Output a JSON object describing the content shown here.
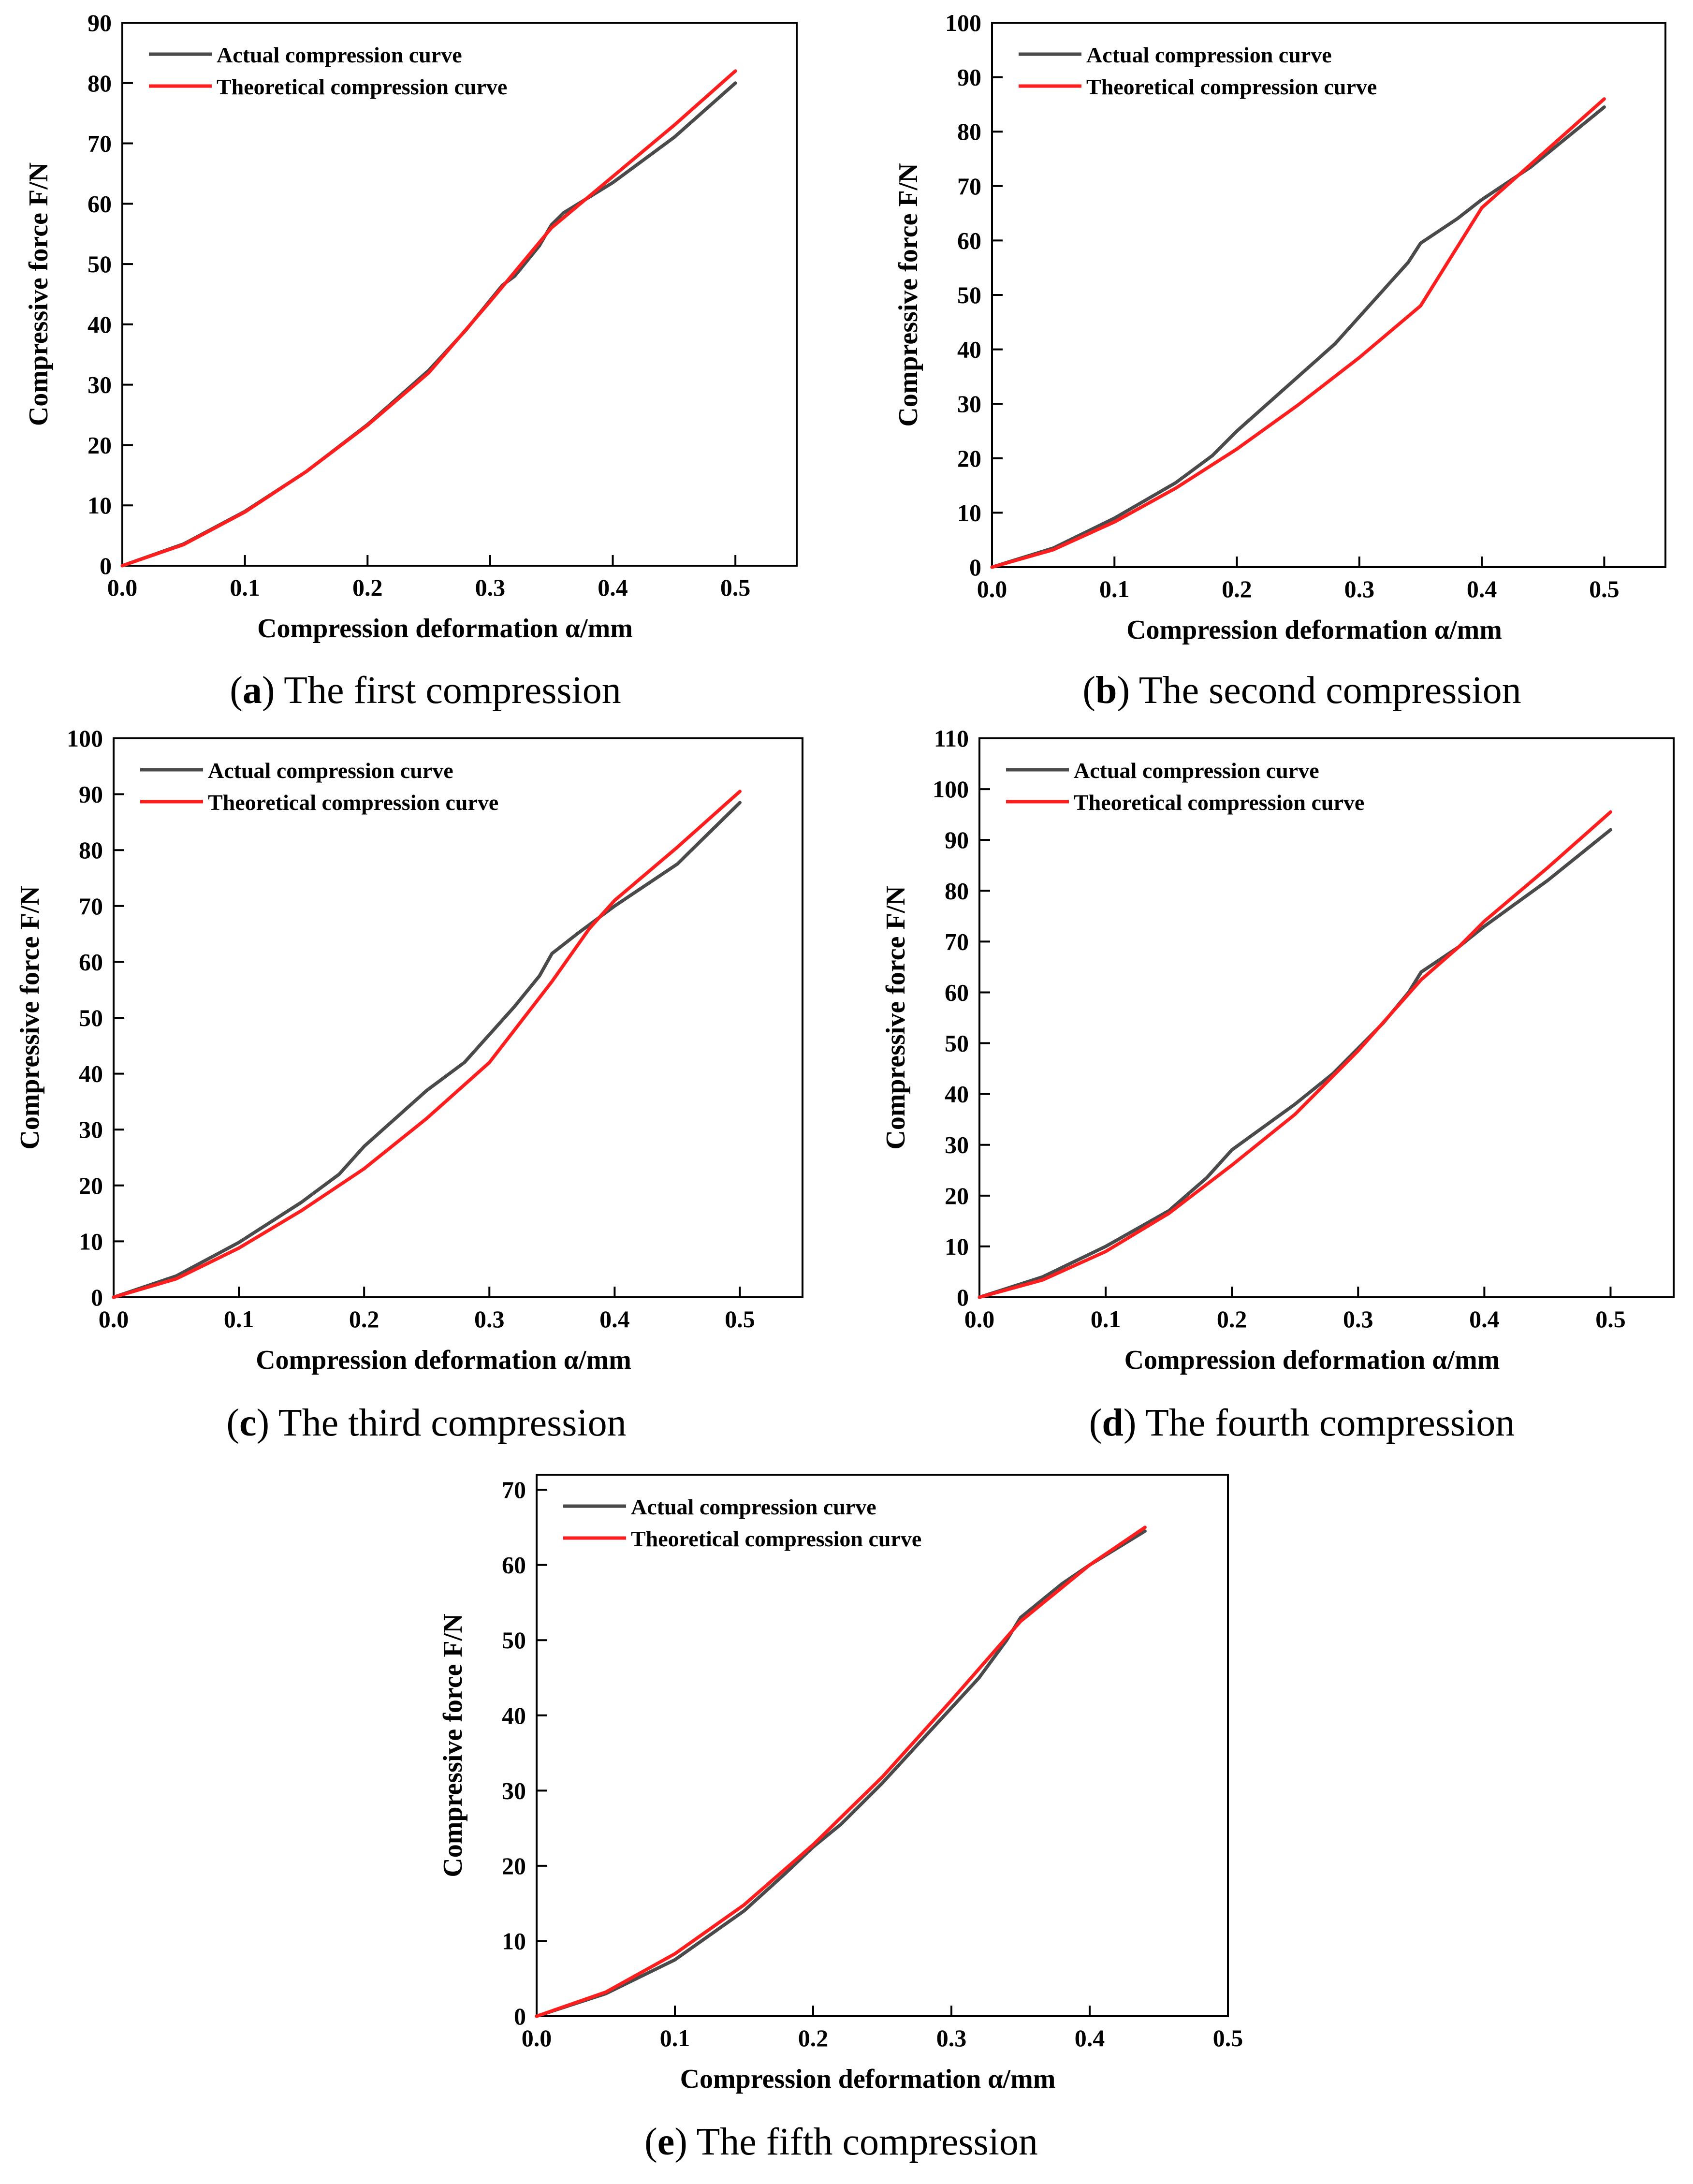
{
  "colors": {
    "actual": "#4a4a4a",
    "theoretical": "#ff1e1e",
    "axis": "#000000",
    "background": "#ffffff"
  },
  "chart_data": [
    {
      "type": "line",
      "panel_letter": "a",
      "caption": "The first compression",
      "xlabel": "Compression deformation α/mm",
      "ylabel": "Compressive force F/N",
      "xlim": [
        0.0,
        0.55
      ],
      "ylim": [
        0,
        90
      ],
      "xticks": [
        "0.0",
        "0.1",
        "0.2",
        "0.3",
        "0.4",
        "0.5"
      ],
      "yticks": [
        "0",
        "10",
        "20",
        "30",
        "40",
        "50",
        "60",
        "70",
        "80",
        "90"
      ],
      "legend": "top-left",
      "series": [
        {
          "name": "Actual compression curve",
          "color": "#4a4a4a",
          "x": [
            0,
            0.05,
            0.1,
            0.15,
            0.2,
            0.25,
            0.28,
            0.3,
            0.31,
            0.32,
            0.34,
            0.35,
            0.36,
            0.38,
            0.4,
            0.45,
            0.5
          ],
          "y": [
            0,
            3.6,
            9,
            15.6,
            23.4,
            32.4,
            39,
            44,
            46.5,
            48,
            53,
            56.5,
            58.5,
            61,
            63.5,
            71,
            80
          ]
        },
        {
          "name": "Theoretical compression curve",
          "color": "#ff1e1e",
          "x": [
            0,
            0.05,
            0.1,
            0.15,
            0.2,
            0.25,
            0.3,
            0.35,
            0.4,
            0.45,
            0.5
          ],
          "y": [
            0,
            3.5,
            8.9,
            15.6,
            23.3,
            32,
            43.8,
            56,
            64.5,
            73,
            82
          ]
        }
      ]
    },
    {
      "type": "line",
      "panel_letter": "b",
      "caption": "The second compression",
      "xlabel": "Compression deformation α/mm",
      "ylabel": "Compressive force F/N",
      "xlim": [
        0.0,
        0.55
      ],
      "ylim": [
        0,
        100
      ],
      "xticks": [
        "0.0",
        "0.1",
        "0.2",
        "0.3",
        "0.4",
        "0.5"
      ],
      "yticks": [
        "0",
        "10",
        "20",
        "30",
        "40",
        "50",
        "60",
        "70",
        "80",
        "90",
        "100"
      ],
      "legend": "top-left",
      "series": [
        {
          "name": "Actual compression curve",
          "color": "#4a4a4a",
          "x": [
            0,
            0.05,
            0.1,
            0.15,
            0.18,
            0.2,
            0.25,
            0.28,
            0.3,
            0.32,
            0.34,
            0.35,
            0.38,
            0.4,
            0.44,
            0.5
          ],
          "y": [
            0,
            3.5,
            9,
            15.5,
            20.5,
            25,
            35,
            41,
            46,
            51,
            56,
            59.5,
            64,
            67.5,
            73.5,
            84.5
          ]
        },
        {
          "name": "Theoretical compression curve",
          "color": "#ff1e1e",
          "x": [
            0,
            0.05,
            0.1,
            0.15,
            0.2,
            0.25,
            0.3,
            0.35,
            0.4,
            0.45,
            0.5
          ],
          "y": [
            0,
            3.2,
            8.3,
            14.5,
            21.7,
            29.8,
            38.5,
            48,
            66,
            76,
            86
          ]
        }
      ]
    },
    {
      "type": "line",
      "panel_letter": "c",
      "caption": "The third compression",
      "xlabel": "Compression deformation α/mm",
      "ylabel": "Compressive force F/N",
      "xlim": [
        0.0,
        0.55
      ],
      "ylim": [
        0,
        100
      ],
      "xticks": [
        "0.0",
        "0.1",
        "0.2",
        "0.3",
        "0.4",
        "0.5"
      ],
      "yticks": [
        "0",
        "10",
        "20",
        "30",
        "40",
        "50",
        "60",
        "70",
        "80",
        "90",
        "100"
      ],
      "legend": "top-left",
      "series": [
        {
          "name": "Actual compression curve",
          "color": "#4a4a4a",
          "x": [
            0,
            0.05,
            0.1,
            0.15,
            0.18,
            0.2,
            0.25,
            0.28,
            0.3,
            0.32,
            0.34,
            0.35,
            0.37,
            0.4,
            0.45,
            0.5
          ],
          "y": [
            0,
            3.8,
            9.8,
            17,
            22,
            27,
            37,
            42,
            47,
            52,
            57.5,
            61.5,
            65,
            70,
            77.5,
            88.5
          ]
        },
        {
          "name": "Theoretical compression curve",
          "color": "#ff1e1e",
          "x": [
            0,
            0.05,
            0.1,
            0.15,
            0.2,
            0.25,
            0.3,
            0.35,
            0.38,
            0.4,
            0.45,
            0.5
          ],
          "y": [
            0,
            3.3,
            8.8,
            15.5,
            23,
            32,
            42,
            56.5,
            66,
            71,
            80.5,
            90.5
          ]
        }
      ]
    },
    {
      "type": "line",
      "panel_letter": "d",
      "caption": "The fourth compression",
      "xlabel": "Compression deformation α/mm",
      "ylabel": "Compressive force F/N",
      "xlim": [
        0.0,
        0.55
      ],
      "ylim": [
        0,
        110
      ],
      "xticks": [
        "0.0",
        "0.1",
        "0.2",
        "0.3",
        "0.4",
        "0.5"
      ],
      "yticks": [
        "0",
        "10",
        "20",
        "30",
        "40",
        "50",
        "60",
        "70",
        "80",
        "90",
        "100",
        "110"
      ],
      "legend": "top-left",
      "series": [
        {
          "name": "Actual compression curve",
          "color": "#4a4a4a",
          "x": [
            0,
            0.05,
            0.1,
            0.15,
            0.18,
            0.2,
            0.25,
            0.28,
            0.3,
            0.32,
            0.34,
            0.35,
            0.38,
            0.4,
            0.45,
            0.5
          ],
          "y": [
            0,
            4,
            10,
            17,
            23.5,
            29,
            38,
            44,
            49,
            54,
            60,
            64,
            69,
            73,
            82,
            92
          ]
        },
        {
          "name": "Theoretical compression curve",
          "color": "#ff1e1e",
          "x": [
            0,
            0.05,
            0.1,
            0.15,
            0.2,
            0.25,
            0.3,
            0.35,
            0.38,
            0.4,
            0.45,
            0.5
          ],
          "y": [
            0,
            3.4,
            9,
            16.5,
            26,
            36,
            48.5,
            62.5,
            69,
            74,
            84.5,
            95.5
          ]
        }
      ]
    },
    {
      "type": "line",
      "panel_letter": "e",
      "caption": "The fifth compression",
      "xlabel": "Compression deformation α/mm",
      "ylabel": "Compressive force F/N",
      "xlim": [
        0.0,
        0.5
      ],
      "ylim": [
        0,
        72
      ],
      "xticks": [
        "0.0",
        "0.1",
        "0.2",
        "0.3",
        "0.4",
        "0.5"
      ],
      "yticks": [
        "0",
        "10",
        "20",
        "30",
        "40",
        "50",
        "60",
        "70"
      ],
      "legend": "top-left",
      "series": [
        {
          "name": "Actual compression curve",
          "color": "#4a4a4a",
          "x": [
            0,
            0.05,
            0.1,
            0.15,
            0.18,
            0.2,
            0.22,
            0.25,
            0.28,
            0.3,
            0.32,
            0.34,
            0.35,
            0.38,
            0.4,
            0.44
          ],
          "y": [
            0,
            3,
            7.5,
            14,
            19,
            22.5,
            25.5,
            31,
            37,
            41,
            45,
            50,
            53,
            57.5,
            60,
            64.5
          ]
        },
        {
          "name": "Theoretical compression curve",
          "color": "#ff1e1e",
          "x": [
            0,
            0.05,
            0.1,
            0.15,
            0.2,
            0.25,
            0.3,
            0.35,
            0.4,
            0.44
          ],
          "y": [
            0,
            3.2,
            8.3,
            14.8,
            22.8,
            31.8,
            42,
            52.5,
            60,
            65
          ]
        }
      ]
    }
  ]
}
